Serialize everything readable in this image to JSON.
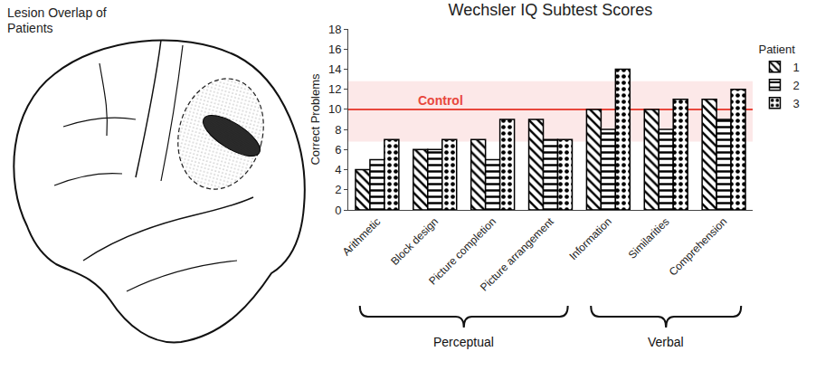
{
  "brain_panel": {
    "title": "Lesion Overlap of Patients"
  },
  "chart_data": {
    "type": "bar",
    "title": "Wechsler IQ Subtest Scores",
    "y_label": "Correct Problems",
    "categories": [
      "Arithmetic",
      "Block design",
      "Picture completion",
      "Picture arrangement",
      "Information",
      "Similarities",
      "Comprehension"
    ],
    "series": [
      {
        "name": "1",
        "color": "#000000",
        "marker": "diagonal",
        "values": [
          4,
          6,
          7,
          9,
          10,
          10,
          11
        ]
      },
      {
        "name": "2",
        "color": "#000000",
        "marker": "horizontal",
        "values": [
          5,
          6,
          5,
          7,
          8,
          8,
          9
        ]
      },
      {
        "name": "3",
        "color": "#000000",
        "marker": "dots",
        "values": [
          7,
          7,
          9,
          7,
          14,
          11,
          12
        ]
      }
    ],
    "legend_title": "Patient",
    "legend": "right",
    "ylim": [
      0,
      18
    ],
    "yticks": [
      0,
      2,
      4,
      6,
      8,
      10,
      12,
      14,
      16,
      18
    ],
    "grid": false,
    "control": {
      "label": "Control",
      "value": 10,
      "band_low": 6.8,
      "band_high": 12.8,
      "color": "#e8473c"
    },
    "groups": [
      {
        "label": "Perceptual",
        "from": "Arithmetic",
        "to": "Picture arrangement"
      },
      {
        "label": "Verbal",
        "from": "Information",
        "to": "Comprehension"
      }
    ]
  }
}
